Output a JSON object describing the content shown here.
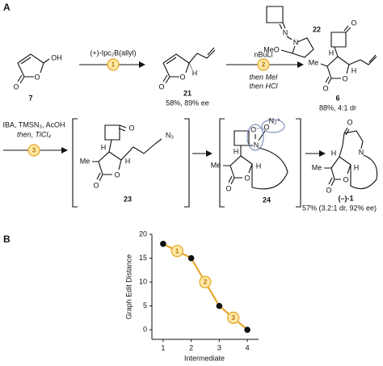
{
  "panels": {
    "a": "A",
    "b": "B"
  },
  "scheme": {
    "compound_7": {
      "label": "7",
      "atoms": [
        "O",
        "O",
        "OH"
      ]
    },
    "step_1": {
      "number": "1",
      "reagent": "(+)-Ipc₂B(allyl)"
    },
    "compound_21": {
      "label": "21",
      "yield": "58%, 89% ee",
      "atoms": [
        "O",
        "O",
        "H"
      ]
    },
    "reagent_22": {
      "label": "22",
      "atoms": [
        "N",
        "N",
        "MeO"
      ]
    },
    "step_2": {
      "number": "2",
      "reagents": [
        "nBuLi",
        "then MeI",
        "then HCl"
      ]
    },
    "compound_6": {
      "label": "6",
      "yield": "88%, 4:1 dr",
      "atoms": [
        "O",
        "O",
        "O",
        "Me",
        "H",
        "H"
      ]
    },
    "step_3": {
      "number": "3",
      "reagents": [
        "IBA, TMSN₃, AcOH",
        "then, TiCl₄"
      ]
    },
    "compound_23": {
      "label": "23",
      "atoms": [
        "O",
        "O",
        "O",
        "Me",
        "H",
        "H",
        "N₃"
      ]
    },
    "compound_24": {
      "label": "24",
      "atoms": [
        "O",
        "O",
        "O⁻",
        "N",
        "N₂⁺",
        "Me",
        "H",
        "H"
      ]
    },
    "compound_1": {
      "label": "(–)-1",
      "yield": "57% (3.2:1 dr, 92% ee)",
      "atoms": [
        "O",
        "O",
        "O",
        "N",
        "Me",
        "H",
        "H"
      ]
    }
  },
  "chart_data": {
    "type": "line",
    "x_label": "Intermediate",
    "y_label": "Graph Edit Distance",
    "x": [
      1,
      2,
      3,
      4
    ],
    "values": [
      18,
      15,
      5,
      0
    ],
    "color": "#e8a21e",
    "step_labels": [
      "1",
      "2",
      "3"
    ],
    "xlim": [
      0.6,
      4.4
    ],
    "xticks": [
      1,
      2,
      3,
      4
    ],
    "ylim": [
      -2,
      20
    ],
    "yticks": [
      0,
      5,
      10,
      15,
      20
    ],
    "grid": false
  }
}
